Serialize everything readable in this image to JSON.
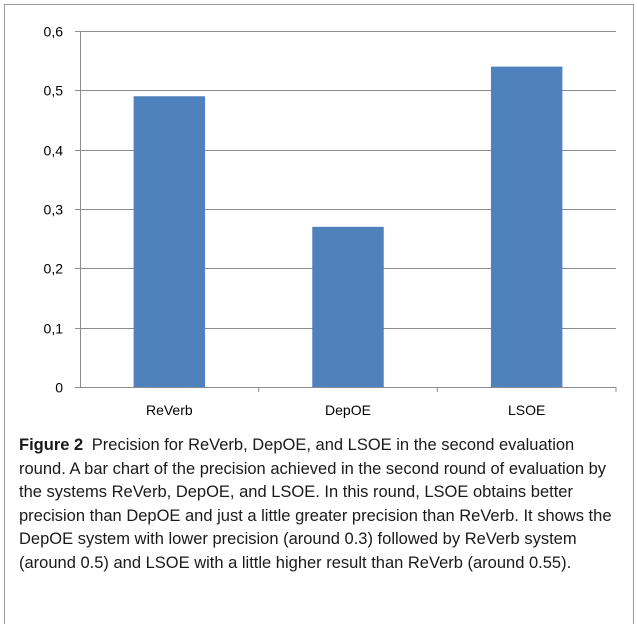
{
  "chart_data": {
    "type": "bar",
    "categories": [
      "ReVerb",
      "DepOE",
      "LSOE"
    ],
    "values": [
      0.49,
      0.27,
      0.54
    ],
    "ylim": [
      0,
      0.6
    ],
    "yticks": [
      0,
      0.1,
      0.2,
      0.3,
      0.4,
      0.5,
      0.6
    ],
    "ytick_labels": [
      "0",
      "0,1",
      "0,2",
      "0,3",
      "0,4",
      "0,5",
      "0,6"
    ],
    "grid": true,
    "bar_color": "#4f81bd",
    "grid_color": "#8c8c8c"
  },
  "caption": {
    "figure_label": "Figure 2",
    "text": "Precision for ReVerb, DepOE, and LSOE in the second evaluation round. A bar chart of the precision achieved in the second round of evaluation by the systems ReVerb, DepOE, and LSOE. In this round, LSOE obtains better precision than DepOE and just a little greater precision than ReVerb. It shows the DepOE system with lower precision (around 0.3) followed by ReVerb system (around 0.5) and LSOE with a little higher result than ReVerb (around 0.55)."
  }
}
